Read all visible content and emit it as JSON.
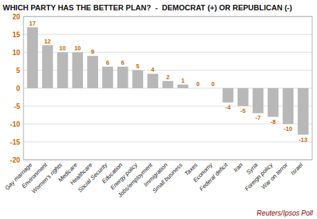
{
  "chart_data": {
    "type": "bar",
    "title": "WHICH PARTY HAS THE BETTER PLAN?  -  DEMOCRAT (+) OR REPUBLICAN (-)",
    "categories": [
      "Gay marriage",
      "Environment",
      "Women's rights",
      "Medicare",
      "Healthcare",
      "Social Security",
      "Education",
      "Energy policy",
      "Jobs/employment",
      "Immigration",
      "Small business",
      "Taxes",
      "Economy",
      "Federal deficit",
      "Iran",
      "Syria",
      "Foreign policy",
      "War on terror",
      "Israel"
    ],
    "values": [
      17,
      12,
      10,
      10,
      9,
      6,
      6,
      5,
      4,
      2,
      1,
      0,
      0,
      -4,
      -5,
      -7,
      -8,
      -10,
      -13
    ],
    "color": "#b8b8b8",
    "ylim": [
      -20,
      20
    ],
    "yticks": [
      -20,
      -15,
      -10,
      -5,
      0,
      5,
      10,
      15,
      20
    ],
    "grid": true,
    "data_labels": true,
    "annotations": [
      "Reuters/Ipsos Poll"
    ]
  }
}
